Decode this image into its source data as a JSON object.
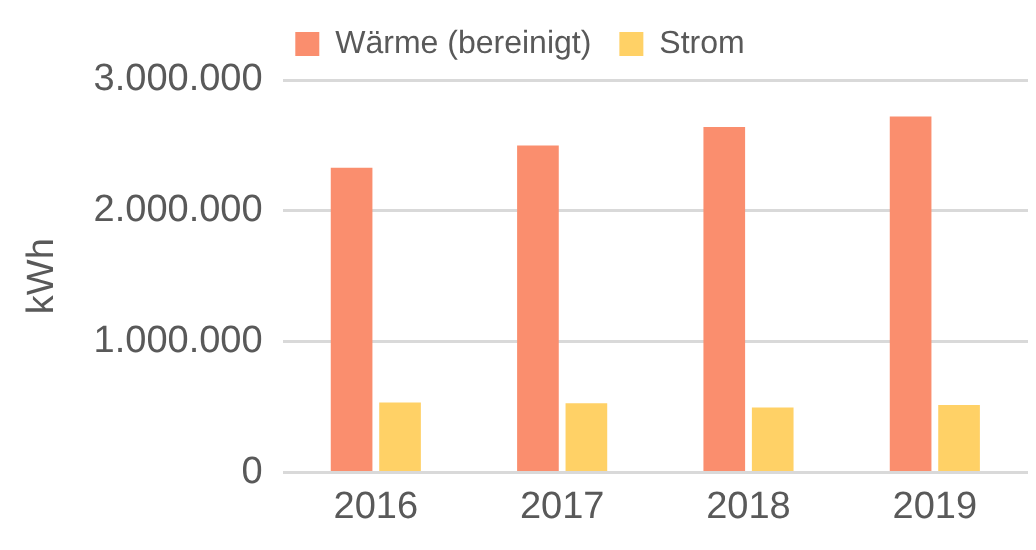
{
  "chart_data": {
    "type": "bar",
    "ylabel": "kWh",
    "categories": [
      "2016",
      "2017",
      "2018",
      "2019"
    ],
    "series": [
      {
        "name": "Wärme (bereinigt)",
        "color": "#fa8e6e",
        "values": [
          2330000,
          2500000,
          2640000,
          2720000
        ]
      },
      {
        "name": "Strom",
        "color": "#ffd166",
        "values": [
          535000,
          528000,
          497000,
          516000
        ]
      }
    ],
    "ylim": [
      0,
      3000000
    ],
    "yticks": [
      {
        "value": 0,
        "label": "0"
      },
      {
        "value": 1000000,
        "label": "1.000.000"
      },
      {
        "value": 2000000,
        "label": "2.000.000"
      },
      {
        "value": 3000000,
        "label": "3.000.000"
      }
    ],
    "grid": "y",
    "legend": "top"
  }
}
